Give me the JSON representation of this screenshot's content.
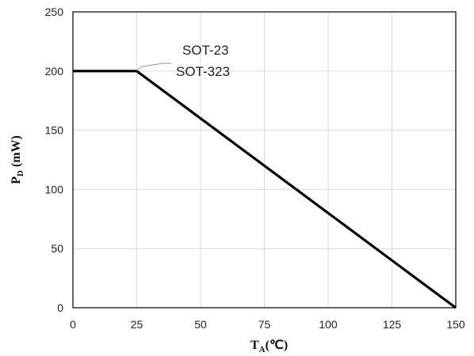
{
  "chart_data": {
    "type": "line",
    "title": "",
    "x_ticks": [
      "0",
      "25",
      "50",
      "75",
      "100",
      "125",
      "150"
    ],
    "y_ticks": [
      "0",
      "50",
      "100",
      "150",
      "200",
      "250"
    ],
    "xlim": [
      0,
      150
    ],
    "ylim": [
      0,
      250
    ],
    "grid": true,
    "series": [
      {
        "x": [
          0,
          25,
          150
        ],
        "y": [
          200,
          200,
          0
        ],
        "color": "#000000"
      }
    ],
    "annotations": [
      "SOT-23",
      "SOT-323"
    ],
    "xlabel": {
      "main": "T",
      "sub": "A",
      "suffix": "(℃)"
    },
    "ylabel": {
      "main": "P",
      "sub": "D",
      "suffix": " (mW)"
    }
  }
}
